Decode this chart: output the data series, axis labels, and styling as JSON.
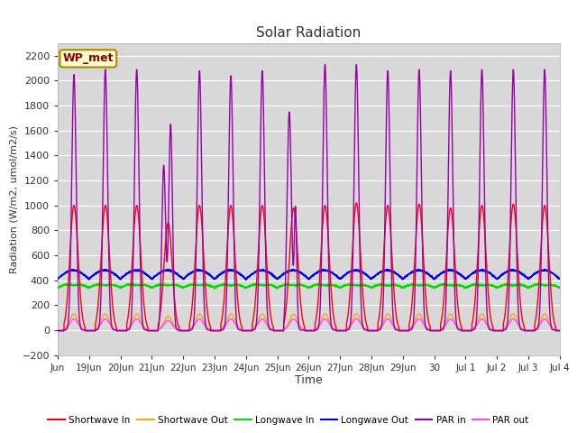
{
  "title": "Solar Radiation",
  "xlabel": "Time",
  "ylabel": "Radiation (W/m2, umol/m2/s)",
  "ylim": [
    -200,
    2300
  ],
  "yticks": [
    -200,
    0,
    200,
    400,
    600,
    800,
    1000,
    1200,
    1400,
    1600,
    1800,
    2000,
    2200
  ],
  "xlim": [
    0,
    16
  ],
  "background_color": "#d8d8d8",
  "figure_color": "#ffffff",
  "grid_color": "#ffffff",
  "colors": {
    "shortwave_in": "#ff0000",
    "shortwave_out": "#ffa500",
    "longwave_in": "#00dd00",
    "longwave_out": "#0000ee",
    "par_in": "#9900aa",
    "par_out": "#ff44ff"
  },
  "legend_labels": [
    "Shortwave In",
    "Shortwave Out",
    "Longwave In",
    "Longwave Out",
    "PAR in",
    "PAR out"
  ],
  "watermark": "WP_met",
  "x_tick_labels": [
    "Jun",
    "19Jun",
    "20Jun",
    "21Jun",
    "22Jun",
    "23Jun",
    "24Jun",
    "25Jun",
    "26Jun",
    "27Jun",
    "28Jun",
    "29Jun",
    "30",
    "Jul 1",
    "Jul 2",
    "Jul 3",
    "Jul 4"
  ]
}
